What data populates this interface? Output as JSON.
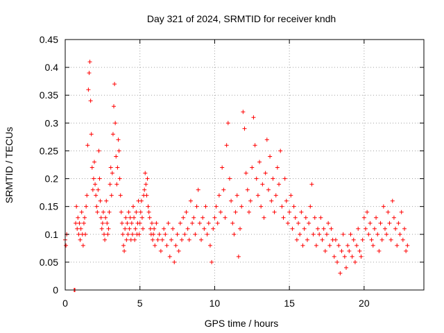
{
  "chart_data": {
    "type": "scatter",
    "title": "Day 321 of 2024, SRMTID for receiver kndh",
    "xlabel": "GPS time / hours",
    "ylabel": "SRMTID / TECUs",
    "xlim": [
      0,
      24
    ],
    "ylim": [
      0,
      0.45
    ],
    "xticks": [
      0,
      5,
      10,
      15,
      20
    ],
    "xtick_labels": [
      "0",
      "5",
      "10",
      "15",
      "20"
    ],
    "yticks": [
      0,
      0.05,
      0.1,
      0.15,
      0.2,
      0.25,
      0.3,
      0.35,
      0.4,
      0.45
    ],
    "ytick_labels": [
      "0",
      "0.05",
      "0.1",
      "0.15",
      "0.2",
      "0.25",
      "0.3",
      "0.35",
      "0.4",
      "0.45"
    ],
    "grid": true,
    "marker": "+",
    "color": "#ff0000",
    "series": [
      {
        "name": "kndh",
        "points": [
          [
            0.0,
            0.09
          ],
          [
            0.05,
            0.08
          ],
          [
            0.1,
            0.1
          ],
          [
            0.6,
            0.0
          ],
          [
            0.65,
            0.0
          ],
          [
            0.7,
            0.12
          ],
          [
            0.75,
            0.15
          ],
          [
            0.8,
            0.11
          ],
          [
            0.85,
            0.13
          ],
          [
            0.9,
            0.1
          ],
          [
            0.95,
            0.12
          ],
          [
            1.0,
            0.09
          ],
          [
            1.05,
            0.11
          ],
          [
            1.1,
            0.14
          ],
          [
            1.15,
            0.1
          ],
          [
            1.2,
            0.08
          ],
          [
            1.25,
            0.12
          ],
          [
            1.3,
            0.13
          ],
          [
            1.35,
            0.1
          ],
          [
            1.4,
            0.15
          ],
          [
            1.45,
            0.17
          ],
          [
            1.5,
            0.26
          ],
          [
            1.55,
            0.36
          ],
          [
            1.6,
            0.39
          ],
          [
            1.65,
            0.41
          ],
          [
            1.7,
            0.34
          ],
          [
            1.75,
            0.28
          ],
          [
            1.8,
            0.22
          ],
          [
            1.85,
            0.18
          ],
          [
            1.9,
            0.2
          ],
          [
            1.95,
            0.23
          ],
          [
            2.0,
            0.19
          ],
          [
            2.05,
            0.17
          ],
          [
            2.1,
            0.15
          ],
          [
            2.15,
            0.14
          ],
          [
            2.2,
            0.18
          ],
          [
            2.25,
            0.25
          ],
          [
            2.3,
            0.2
          ],
          [
            2.35,
            0.16
          ],
          [
            2.4,
            0.13
          ],
          [
            2.45,
            0.11
          ],
          [
            2.5,
            0.12
          ],
          [
            2.55,
            0.14
          ],
          [
            2.6,
            0.1
          ],
          [
            2.65,
            0.09
          ],
          [
            2.7,
            0.13
          ],
          [
            2.75,
            0.16
          ],
          [
            2.8,
            0.12
          ],
          [
            2.85,
            0.1
          ],
          [
            2.9,
            0.11
          ],
          [
            2.95,
            0.14
          ],
          [
            3.0,
            0.19
          ],
          [
            3.05,
            0.22
          ],
          [
            3.1,
            0.17
          ],
          [
            3.15,
            0.21
          ],
          [
            3.2,
            0.28
          ],
          [
            3.25,
            0.33
          ],
          [
            3.3,
            0.37
          ],
          [
            3.35,
            0.3
          ],
          [
            3.4,
            0.24
          ],
          [
            3.45,
            0.19
          ],
          [
            3.5,
            0.22
          ],
          [
            3.55,
            0.27
          ],
          [
            3.6,
            0.25
          ],
          [
            3.65,
            0.2
          ],
          [
            3.7,
            0.17
          ],
          [
            3.75,
            0.14
          ],
          [
            3.8,
            0.12
          ],
          [
            3.85,
            0.1
          ],
          [
            3.9,
            0.08
          ],
          [
            3.95,
            0.07
          ],
          [
            4.0,
            0.11
          ],
          [
            4.05,
            0.13
          ],
          [
            4.1,
            0.09
          ],
          [
            4.15,
            0.12
          ],
          [
            4.2,
            0.1
          ],
          [
            4.25,
            0.14
          ],
          [
            4.3,
            0.11
          ],
          [
            4.35,
            0.13
          ],
          [
            4.4,
            0.09
          ],
          [
            4.45,
            0.12
          ],
          [
            4.5,
            0.1
          ],
          [
            4.55,
            0.15
          ],
          [
            4.6,
            0.13
          ],
          [
            4.65,
            0.09
          ],
          [
            4.7,
            0.11
          ],
          [
            4.75,
            0.14
          ],
          [
            4.8,
            0.1
          ],
          [
            4.85,
            0.12
          ],
          [
            4.9,
            0.16
          ],
          [
            4.95,
            0.1
          ],
          [
            5.0,
            0.12
          ],
          [
            5.05,
            0.14
          ],
          [
            5.1,
            0.16
          ],
          [
            5.15,
            0.13
          ],
          [
            5.2,
            0.11
          ],
          [
            5.25,
            0.17
          ],
          [
            5.3,
            0.18
          ],
          [
            5.35,
            0.21
          ],
          [
            5.4,
            0.19
          ],
          [
            5.45,
            0.17
          ],
          [
            5.5,
            0.2
          ],
          [
            5.55,
            0.15
          ],
          [
            5.6,
            0.14
          ],
          [
            5.65,
            0.13
          ],
          [
            5.7,
            0.11
          ],
          [
            5.75,
            0.1
          ],
          [
            5.8,
            0.12
          ],
          [
            5.85,
            0.09
          ],
          [
            5.9,
            0.1
          ],
          [
            5.95,
            0.11
          ],
          [
            6.0,
            0.08
          ],
          [
            6.1,
            0.12
          ],
          [
            6.2,
            0.09
          ],
          [
            6.3,
            0.1
          ],
          [
            6.4,
            0.07
          ],
          [
            6.5,
            0.09
          ],
          [
            6.6,
            0.11
          ],
          [
            6.7,
            0.1
          ],
          [
            6.8,
            0.08
          ],
          [
            6.9,
            0.12
          ],
          [
            7.0,
            0.06
          ],
          [
            7.1,
            0.09
          ],
          [
            7.2,
            0.11
          ],
          [
            7.3,
            0.05
          ],
          [
            7.4,
            0.08
          ],
          [
            7.5,
            0.1
          ],
          [
            7.6,
            0.07
          ],
          [
            7.7,
            0.12
          ],
          [
            7.8,
            0.09
          ],
          [
            7.9,
            0.13
          ],
          [
            8.0,
            0.1
          ],
          [
            8.1,
            0.14
          ],
          [
            8.2,
            0.11
          ],
          [
            8.3,
            0.09
          ],
          [
            8.4,
            0.16
          ],
          [
            8.5,
            0.12
          ],
          [
            8.6,
            0.13
          ],
          [
            8.7,
            0.1
          ],
          [
            8.8,
            0.15
          ],
          [
            8.9,
            0.18
          ],
          [
            9.0,
            0.12
          ],
          [
            9.1,
            0.09
          ],
          [
            9.2,
            0.13
          ],
          [
            9.3,
            0.11
          ],
          [
            9.4,
            0.15
          ],
          [
            9.5,
            0.1
          ],
          [
            9.6,
            0.12
          ],
          [
            9.7,
            0.08
          ],
          [
            9.8,
            0.05
          ],
          [
            9.9,
            0.11
          ],
          [
            10.0,
            0.13
          ],
          [
            10.1,
            0.15
          ],
          [
            10.2,
            0.12
          ],
          [
            10.3,
            0.17
          ],
          [
            10.4,
            0.14
          ],
          [
            10.5,
            0.22
          ],
          [
            10.6,
            0.18
          ],
          [
            10.7,
            0.13
          ],
          [
            10.8,
            0.26
          ],
          [
            10.9,
            0.3
          ],
          [
            11.0,
            0.2
          ],
          [
            11.1,
            0.16
          ],
          [
            11.2,
            0.12
          ],
          [
            11.3,
            0.1
          ],
          [
            11.4,
            0.14
          ],
          [
            11.5,
            0.17
          ],
          [
            11.6,
            0.06
          ],
          [
            11.7,
            0.11
          ],
          [
            11.8,
            0.15
          ],
          [
            11.9,
            0.32
          ],
          [
            12.0,
            0.29
          ],
          [
            12.1,
            0.21
          ],
          [
            12.2,
            0.18
          ],
          [
            12.3,
            0.14
          ],
          [
            12.4,
            0.16
          ],
          [
            12.5,
            0.22
          ],
          [
            12.6,
            0.31
          ],
          [
            12.7,
            0.26
          ],
          [
            12.8,
            0.2
          ],
          [
            12.9,
            0.17
          ],
          [
            13.0,
            0.23
          ],
          [
            13.1,
            0.15
          ],
          [
            13.2,
            0.19
          ],
          [
            13.3,
            0.13
          ],
          [
            13.4,
            0.21
          ],
          [
            13.5,
            0.27
          ],
          [
            13.6,
            0.18
          ],
          [
            13.7,
            0.24
          ],
          [
            13.8,
            0.16
          ],
          [
            13.9,
            0.2
          ],
          [
            14.0,
            0.14
          ],
          [
            14.1,
            0.17
          ],
          [
            14.2,
            0.22
          ],
          [
            14.3,
            0.19
          ],
          [
            14.4,
            0.25
          ],
          [
            14.5,
            0.15
          ],
          [
            14.6,
            0.13
          ],
          [
            14.7,
            0.2
          ],
          [
            14.8,
            0.16
          ],
          [
            14.9,
            0.12
          ],
          [
            15.0,
            0.14
          ],
          [
            15.1,
            0.17
          ],
          [
            15.2,
            0.11
          ],
          [
            15.3,
            0.15
          ],
          [
            15.4,
            0.13
          ],
          [
            15.5,
            0.09
          ],
          [
            15.6,
            0.12
          ],
          [
            15.7,
            0.1
          ],
          [
            15.8,
            0.14
          ],
          [
            15.9,
            0.08
          ],
          [
            16.0,
            0.11
          ],
          [
            16.1,
            0.13
          ],
          [
            16.2,
            0.09
          ],
          [
            16.3,
            0.12
          ],
          [
            16.4,
            0.15
          ],
          [
            16.5,
            0.19
          ],
          [
            16.6,
            0.1
          ],
          [
            16.7,
            0.13
          ],
          [
            16.8,
            0.08
          ],
          [
            16.9,
            0.11
          ],
          [
            17.0,
            0.1
          ],
          [
            17.1,
            0.13
          ],
          [
            17.2,
            0.09
          ],
          [
            17.3,
            0.11
          ],
          [
            17.4,
            0.07
          ],
          [
            17.5,
            0.1
          ],
          [
            17.6,
            0.12
          ],
          [
            17.7,
            0.08
          ],
          [
            17.8,
            0.11
          ],
          [
            17.9,
            0.09
          ],
          [
            18.0,
            0.06
          ],
          [
            18.1,
            0.09
          ],
          [
            18.2,
            0.05
          ],
          [
            18.3,
            0.08
          ],
          [
            18.4,
            0.03
          ],
          [
            18.5,
            0.07
          ],
          [
            18.6,
            0.1
          ],
          [
            18.7,
            0.06
          ],
          [
            18.8,
            0.04
          ],
          [
            18.9,
            0.08
          ],
          [
            19.0,
            0.07
          ],
          [
            19.1,
            0.1
          ],
          [
            19.2,
            0.06
          ],
          [
            19.3,
            0.09
          ],
          [
            19.4,
            0.05
          ],
          [
            19.5,
            0.08
          ],
          [
            19.6,
            0.11
          ],
          [
            19.7,
            0.07
          ],
          [
            19.8,
            0.06
          ],
          [
            19.9,
            0.09
          ],
          [
            20.0,
            0.13
          ],
          [
            20.1,
            0.11
          ],
          [
            20.2,
            0.14
          ],
          [
            20.3,
            0.1
          ],
          [
            20.4,
            0.12
          ],
          [
            20.5,
            0.09
          ],
          [
            20.6,
            0.08
          ],
          [
            20.7,
            0.11
          ],
          [
            20.8,
            0.13
          ],
          [
            20.9,
            0.1
          ],
          [
            21.0,
            0.07
          ],
          [
            21.1,
            0.12
          ],
          [
            21.2,
            0.09
          ],
          [
            21.3,
            0.15
          ],
          [
            21.4,
            0.11
          ],
          [
            21.5,
            0.1
          ],
          [
            21.6,
            0.14
          ],
          [
            21.7,
            0.12
          ],
          [
            21.8,
            0.09
          ],
          [
            21.9,
            0.16
          ],
          [
            22.0,
            0.13
          ],
          [
            22.1,
            0.11
          ],
          [
            22.2,
            0.08
          ],
          [
            22.3,
            0.12
          ],
          [
            22.4,
            0.1
          ],
          [
            22.5,
            0.14
          ],
          [
            22.6,
            0.09
          ],
          [
            22.7,
            0.11
          ],
          [
            22.8,
            0.07
          ],
          [
            22.9,
            0.08
          ]
        ]
      }
    ]
  }
}
